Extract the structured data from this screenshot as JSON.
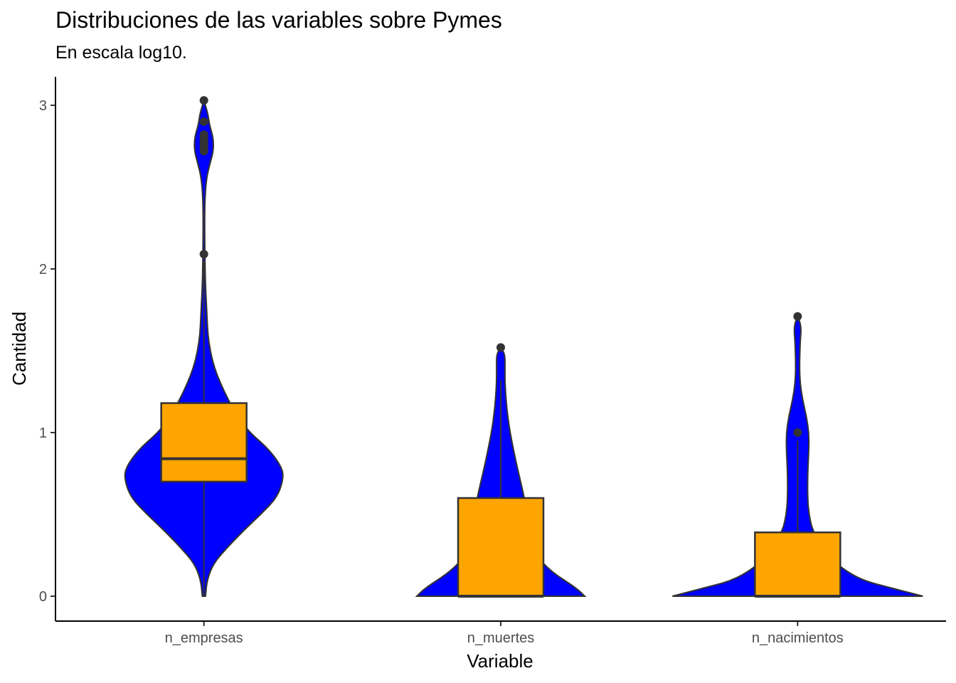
{
  "chart_data": {
    "type": "violin",
    "title": "Distribuciones de las variables sobre Pymes",
    "subtitle": "En escala log10.",
    "xlabel": "Variable",
    "ylabel": "Cantidad",
    "ylim": [
      -0.15,
      3.15
    ],
    "yticks": [
      "0",
      "1",
      "2",
      "3"
    ],
    "categories": [
      "n_empresas",
      "n_muertes",
      "n_nacimientos"
    ],
    "colors": {
      "violin_fill": "#0000ff",
      "box_fill": "#ffa500",
      "outline": "#333333"
    },
    "groups": [
      {
        "name": "n_empresas",
        "box": {
          "lower_whisker": 0.0,
          "q1": 0.7,
          "median": 0.84,
          "q3": 1.18,
          "upper_whisker": 2.05
        },
        "outliers": [
          2.09,
          2.72,
          2.74,
          2.76,
          2.78,
          2.8,
          2.82,
          2.9,
          3.03
        ],
        "density": [
          [
            0.0,
            0.02
          ],
          [
            0.1,
            0.04
          ],
          [
            0.2,
            0.12
          ],
          [
            0.3,
            0.3
          ],
          [
            0.4,
            0.5
          ],
          [
            0.5,
            0.72
          ],
          [
            0.6,
            0.92
          ],
          [
            0.7,
            1.0
          ],
          [
            0.78,
            1.0
          ],
          [
            0.9,
            0.82
          ],
          [
            1.0,
            0.58
          ],
          [
            1.1,
            0.42
          ],
          [
            1.2,
            0.31
          ],
          [
            1.3,
            0.21
          ],
          [
            1.4,
            0.13
          ],
          [
            1.5,
            0.08
          ],
          [
            1.6,
            0.05
          ],
          [
            1.7,
            0.04
          ],
          [
            1.8,
            0.03
          ],
          [
            1.9,
            0.02
          ],
          [
            2.0,
            0.015
          ],
          [
            2.2,
            0.01
          ],
          [
            2.4,
            0.01
          ],
          [
            2.55,
            0.03
          ],
          [
            2.65,
            0.08
          ],
          [
            2.72,
            0.12
          ],
          [
            2.8,
            0.12
          ],
          [
            2.88,
            0.07
          ],
          [
            2.95,
            0.05
          ],
          [
            3.03,
            0.0
          ]
        ]
      },
      {
        "name": "n_muertes",
        "box": {
          "lower_whisker": 0.0,
          "q1": 0.0,
          "median": 0.0,
          "q3": 0.6,
          "upper_whisker": 1.32
        },
        "outliers": [
          1.52
        ],
        "density": [
          [
            0.0,
            1.0
          ],
          [
            0.05,
            0.9
          ],
          [
            0.15,
            0.6
          ],
          [
            0.25,
            0.42
          ],
          [
            0.35,
            0.36
          ],
          [
            0.5,
            0.32
          ],
          [
            0.65,
            0.26
          ],
          [
            0.8,
            0.19
          ],
          [
            1.0,
            0.11
          ],
          [
            1.15,
            0.07
          ],
          [
            1.3,
            0.05
          ],
          [
            1.4,
            0.05
          ],
          [
            1.48,
            0.05
          ],
          [
            1.52,
            0.0
          ]
        ]
      },
      {
        "name": "n_nacimientos",
        "box": {
          "lower_whisker": 0.0,
          "q1": 0.0,
          "median": 0.0,
          "q3": 0.39,
          "upper_whisker": 0.95
        },
        "outliers": [
          1.0,
          1.71
        ],
        "density": [
          [
            0.0,
            1.0
          ],
          [
            0.05,
            0.75
          ],
          [
            0.1,
            0.5
          ],
          [
            0.2,
            0.3
          ],
          [
            0.3,
            0.2
          ],
          [
            0.4,
            0.12
          ],
          [
            0.5,
            0.09
          ],
          [
            0.6,
            0.08
          ],
          [
            0.75,
            0.08
          ],
          [
            0.9,
            0.09
          ],
          [
            1.0,
            0.09
          ],
          [
            1.1,
            0.07
          ],
          [
            1.2,
            0.04
          ],
          [
            1.3,
            0.02
          ],
          [
            1.4,
            0.015
          ],
          [
            1.55,
            0.02
          ],
          [
            1.65,
            0.03
          ],
          [
            1.71,
            0.0
          ]
        ]
      }
    ],
    "grid": false,
    "legend": "none"
  }
}
